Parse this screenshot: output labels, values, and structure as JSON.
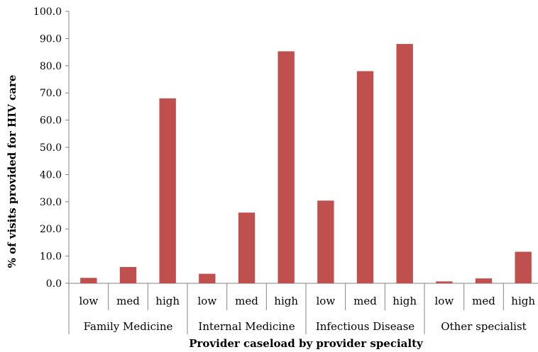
{
  "chart_data": {
    "type": "bar",
    "title": "",
    "xlabel": "Provider caseload by provider specialty",
    "ylabel": "% of visits provided for HIV care",
    "ylim": [
      0,
      100
    ],
    "y_ticks": [
      "0.0",
      "10.0",
      "20.0",
      "30.0",
      "40.0",
      "50.0",
      "60.0",
      "70.0",
      "80.0",
      "90.0",
      "100.0"
    ],
    "grid": false,
    "bar_color": "#C0504D",
    "groups": [
      {
        "name": "Family Medicine",
        "categories": [
          "low",
          "med",
          "high"
        ],
        "values": [
          2.0,
          6.0,
          68.0
        ]
      },
      {
        "name": "Internal Medicine",
        "categories": [
          "low",
          "med",
          "high"
        ],
        "values": [
          3.5,
          26.0,
          85.3
        ]
      },
      {
        "name": "Infectious Disease",
        "categories": [
          "low",
          "med",
          "high"
        ],
        "values": [
          30.4,
          78.0,
          88.0
        ]
      },
      {
        "name": "Other specialist",
        "categories": [
          "low",
          "med",
          "high"
        ],
        "values": [
          0.7,
          1.8,
          11.6
        ]
      }
    ]
  }
}
